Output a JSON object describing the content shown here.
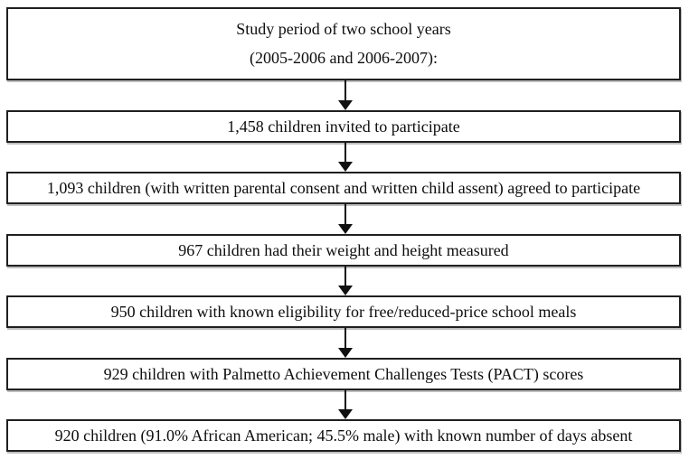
{
  "figure": {
    "type": "flowchart",
    "study_period_box": {
      "line1": "Study period of two school years",
      "line2": "(2005-2006 and 2006-2007):"
    },
    "steps": [
      "1,458 children invited to participate",
      "1,093 children (with written parental consent and written child assent) agreed to participate",
      "967 children had their weight and height measured",
      "950 children with known eligibility for free/reduced-price school meals",
      "929 children with Palmetto Achievement Challenges Tests (PACT) scores",
      "920 children (91.0% African American; 45.5% male) with known number of days absent"
    ],
    "colors": {
      "background": "#ffffff",
      "border": "#1f1f1f",
      "text": "#0e0e0e",
      "arrow": "#101010"
    }
  }
}
